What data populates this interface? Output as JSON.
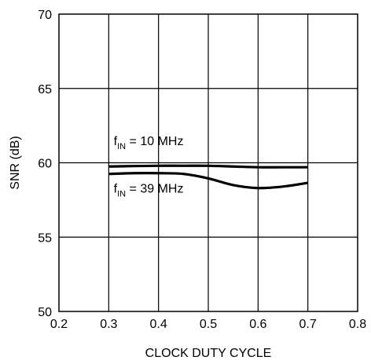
{
  "chart_data": {
    "type": "line",
    "title": "",
    "xlabel": "CLOCK DUTY CYCLE",
    "ylabel": "SNR (dB)",
    "xlim": [
      0.2,
      0.8
    ],
    "ylim": [
      50,
      70
    ],
    "xticks": [
      0.2,
      0.3,
      0.4,
      0.5,
      0.6,
      0.7,
      0.8
    ],
    "yticks": [
      50,
      55,
      60,
      65,
      70
    ],
    "xtick_labels": [
      "0.2",
      "0.3",
      "0.4",
      "0.5",
      "0.6",
      "0.7",
      "0.8"
    ],
    "ytick_labels": [
      "50",
      "55",
      "60",
      "65",
      "70"
    ],
    "grid": true,
    "series": [
      {
        "name": "",
        "color": "#000000",
        "x": [
          0.3,
          0.35,
          0.4,
          0.45,
          0.5,
          0.55,
          0.6,
          0.65,
          0.7
        ],
        "y": [
          59.75,
          59.78,
          59.8,
          59.8,
          59.8,
          59.75,
          59.7,
          59.7,
          59.7
        ]
      },
      {
        "name": "",
        "color": "#000000",
        "x": [
          0.3,
          0.35,
          0.4,
          0.45,
          0.5,
          0.55,
          0.6,
          0.65,
          0.7
        ],
        "y": [
          59.25,
          59.3,
          59.3,
          59.25,
          58.95,
          58.5,
          58.3,
          58.4,
          58.65
        ]
      }
    ],
    "annotations": [
      {
        "base": "f",
        "sub": "IN",
        "text": " = 10 MHz",
        "x": 0.31,
        "y": 61.2
      },
      {
        "base": "f",
        "sub": "IN",
        "text": " = 39 MHz",
        "x": 0.31,
        "y": 58.0
      }
    ]
  }
}
